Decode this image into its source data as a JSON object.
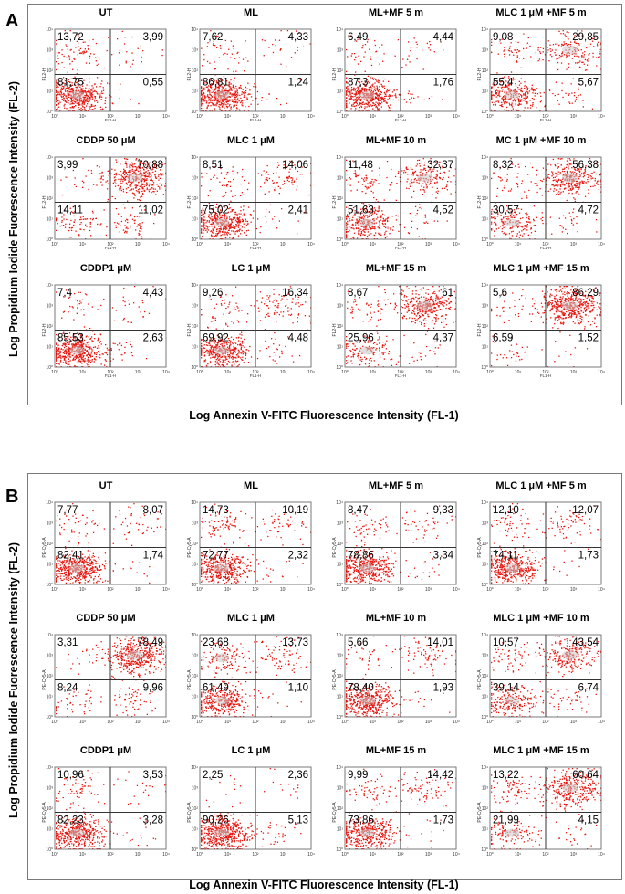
{
  "figure": {
    "axes": {
      "y_label": "Log Propidium Iodide Fuorescence Intensity (FL-2)",
      "x_label": "Log Annexin V-FITC Fluorescence Intensity (FL-1)",
      "tick_labels": [
        "10⁰",
        "10¹",
        "10²",
        "10³",
        "10⁴"
      ]
    },
    "colors": {
      "dots": "#e8140e",
      "core": "#c9c9c9",
      "lines": "#333333",
      "frame": "#7a7a7a"
    }
  },
  "panels": [
    {
      "letter": "A",
      "xlabel_A": "FL1-H",
      "ylabel_A": "FL2-H"
    },
    {
      "letter": "B",
      "xlabel_B": "",
      "ylabel_B": "PE-Cy5-A"
    }
  ],
  "chart_data": [
    {
      "panel": "A",
      "type": "scatter",
      "title": "Flow cytometry Annexin V-FITC / PI quadrant analysis (panel A)",
      "xlabel": "Log Annexin V-FITC Fluorescence Intensity (FL-1)",
      "ylabel": "Log Propidium Iodide Fuorescence Intensity (FL-2)",
      "quadrant_order": [
        "upper-left",
        "upper-right",
        "lower-left",
        "lower-right"
      ],
      "plots": [
        {
          "title": "UT",
          "quadrants": [
            "13,72",
            "3,99",
            "81,75",
            "0,55"
          ]
        },
        {
          "title": "ML",
          "quadrants": [
            "7,62",
            "4,33",
            "86,81",
            "1,24"
          ]
        },
        {
          "title": "ML+MF  5 m",
          "quadrants": [
            "6,49",
            "4,44",
            "87,3",
            "1,76"
          ]
        },
        {
          "title": "MLC 1 μM +MF 5 m",
          "quadrants": [
            "9,08",
            "29,85",
            "55,4",
            "5,67"
          ]
        },
        {
          "title": "CDDP 50 μM",
          "quadrants": [
            "3,99",
            "70,88",
            "14,11",
            "11,02"
          ]
        },
        {
          "title": "MLC 1 μM",
          "quadrants": [
            "8,51",
            "14,06",
            "75,02",
            "2,41"
          ]
        },
        {
          "title": "ML+MF  10 m",
          "quadrants": [
            "11,48",
            "32,37",
            "51,63",
            "4,52"
          ]
        },
        {
          "title": "MC 1 μM +MF 10 m",
          "quadrants": [
            "8,32",
            "56,38",
            "30,57",
            "4,72"
          ]
        },
        {
          "title": "CDDP1 μM",
          "quadrants": [
            "7,4",
            "4,43",
            "85,53",
            "2,63"
          ]
        },
        {
          "title": "LC 1 μM",
          "quadrants": [
            "9,26",
            "16,34",
            "69,92",
            "4,48"
          ]
        },
        {
          "title": "ML+MF  15 m",
          "quadrants": [
            "8,67",
            "61",
            "25,96",
            "4,37"
          ]
        },
        {
          "title": "MLC 1 μM +MF 15 m",
          "quadrants": [
            "5,6",
            "86,29",
            "6,59",
            "1,52"
          ]
        }
      ]
    },
    {
      "panel": "B",
      "type": "scatter",
      "title": "Flow cytometry Annexin V-FITC / PI quadrant analysis (panel B)",
      "xlabel": "Log Annexin V-FITC Fluorescence Intensity (FL-1)",
      "ylabel": "Log Propidium Iodide Fuorescence Intensity (FL-2)",
      "quadrant_order": [
        "upper-left",
        "upper-right",
        "lower-left",
        "lower-right"
      ],
      "plots": [
        {
          "title": "UT",
          "quadrants": [
            "7,77",
            "8,07",
            "82,41",
            "1,74"
          ]
        },
        {
          "title": "ML",
          "quadrants": [
            "14,73",
            "10,19",
            "72,77",
            "2,32"
          ]
        },
        {
          "title": "ML+MF  5 m",
          "quadrants": [
            "8,47",
            "9,33",
            "78,86",
            "3,34"
          ]
        },
        {
          "title": "MLC 1 μM +MF 5 m",
          "quadrants": [
            "12,10",
            "12,07",
            "74,11",
            "1,73"
          ]
        },
        {
          "title": "CDDP  50 μM",
          "quadrants": [
            "3,31",
            "78,49",
            "8,24",
            "9,96"
          ]
        },
        {
          "title": "MLC 1 μM",
          "quadrants": [
            "23,68",
            "13,73",
            "61,49",
            "1,10"
          ]
        },
        {
          "title": "ML+MF  10 m",
          "quadrants": [
            "5,66",
            "14,01",
            "78,40",
            "1,93"
          ]
        },
        {
          "title": "MLC 1 μM +MF 10 m",
          "quadrants": [
            "10,57",
            "43,54",
            "39,14",
            "6,74"
          ]
        },
        {
          "title": "CDDP1  μM",
          "quadrants": [
            "10,96",
            "3,53",
            "82,23",
            "3,28"
          ]
        },
        {
          "title": "LC 1 μM",
          "quadrants": [
            "2,25",
            "2,36",
            "90,26",
            "5,13"
          ]
        },
        {
          "title": "ML+MF  15 m",
          "quadrants": [
            "9,99",
            "14,42",
            "73,86",
            "1,73"
          ]
        },
        {
          "title": "MLC 1 μM +MF 15 m",
          "quadrants": [
            "13,22",
            "60,64",
            "21,99",
            "4,15"
          ]
        }
      ]
    }
  ]
}
